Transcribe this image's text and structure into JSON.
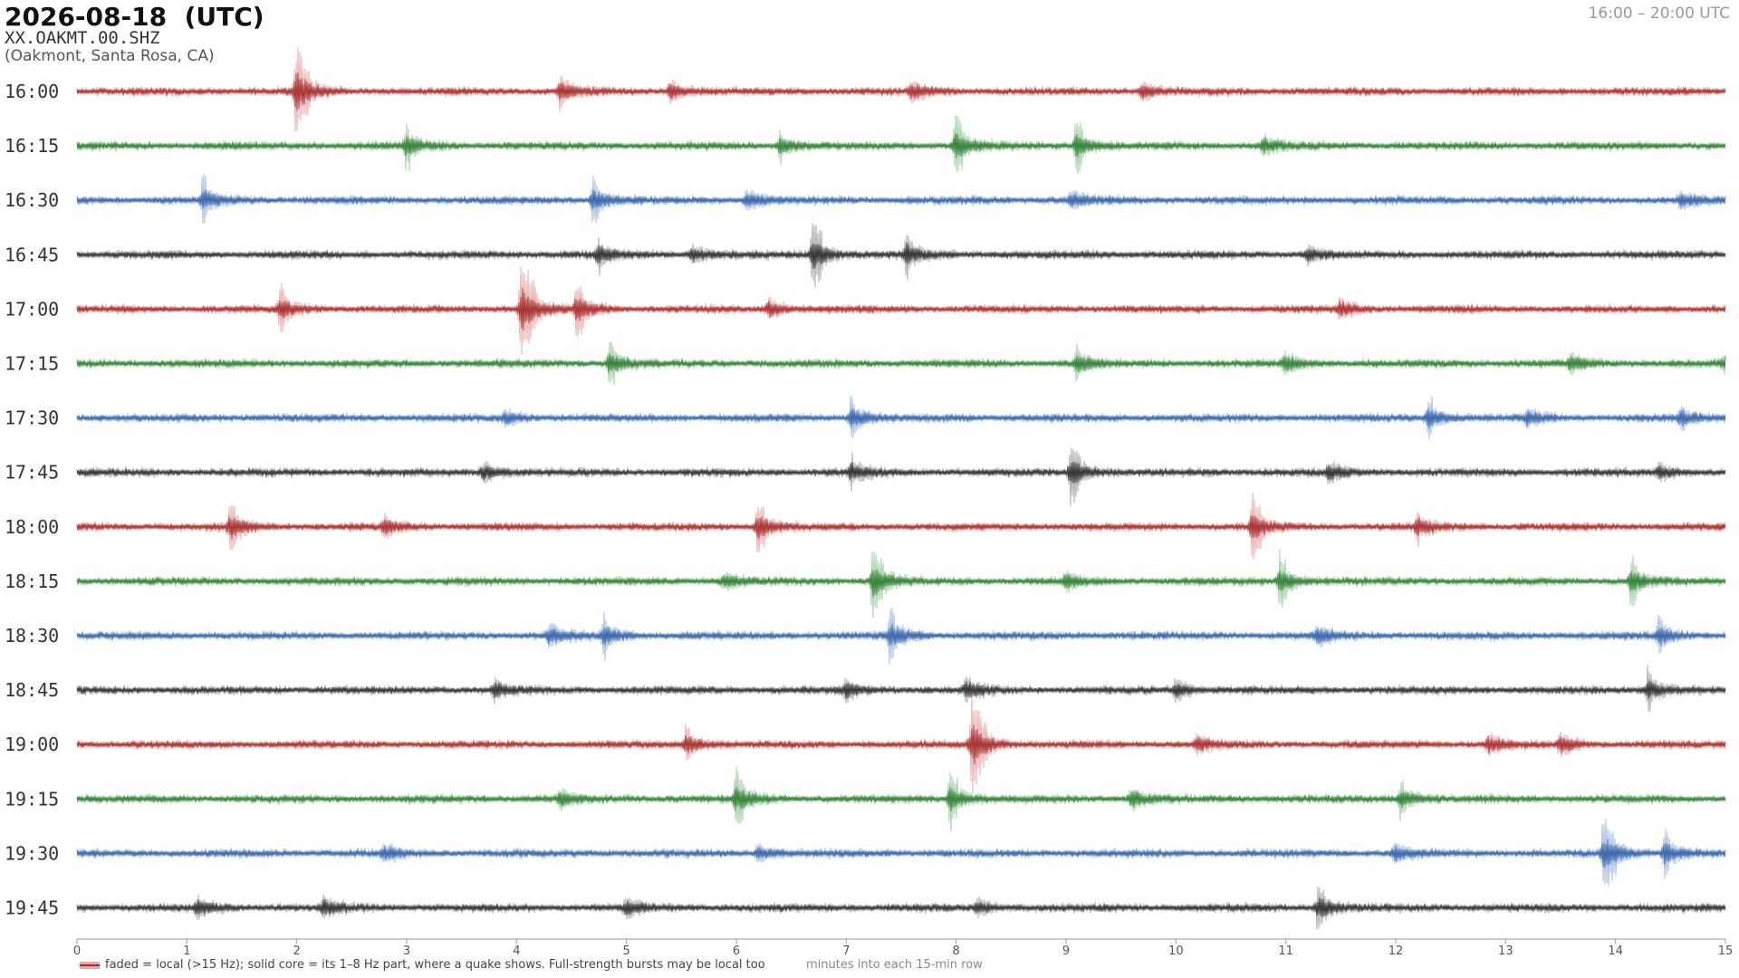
{
  "header": {
    "title": "2026-08-18  (UTC)",
    "station": "XX.OAKMT.00.SHZ",
    "location": "(Oakmont, Santa Rosa, CA)",
    "time_range": "16:00 – 20:00 UTC"
  },
  "legend": {
    "text": "faded = local (>15 Hz); solid core = its 1–8 Hz part, where a quake shows. Full-strength bursts may be local too"
  },
  "chart_data": {
    "type": "line",
    "title": "2026-08-18  (UTC)",
    "xlabel": "minutes into each 15-min row",
    "ylabel": "",
    "xlim": [
      0,
      15
    ],
    "xticks": [
      "0",
      "1",
      "2",
      "3",
      "4",
      "5",
      "6",
      "7",
      "8",
      "9",
      "10",
      "11",
      "12",
      "13",
      "14",
      "15"
    ],
    "grid": false,
    "palette": [
      "#a52a2a",
      "#2e7d32",
      "#3461a8",
      "#2b2b2b"
    ],
    "rows": [
      {
        "label": "16:00",
        "events": [
          [
            2.0,
            3.5
          ],
          [
            4.4,
            1.6
          ],
          [
            5.4,
            1.3
          ],
          [
            7.6,
            1.2
          ],
          [
            9.7,
            1.1
          ]
        ]
      },
      {
        "label": "16:15",
        "events": [
          [
            3.0,
            1.6
          ],
          [
            6.4,
            1.4
          ],
          [
            8.0,
            2.3
          ],
          [
            9.1,
            2.0
          ],
          [
            10.8,
            1.2
          ]
        ]
      },
      {
        "label": "16:30",
        "events": [
          [
            1.15,
            1.7
          ],
          [
            4.7,
            1.9
          ],
          [
            6.1,
            1.3
          ],
          [
            9.05,
            1.1
          ],
          [
            14.6,
            1.0
          ]
        ]
      },
      {
        "label": "16:45",
        "events": [
          [
            4.75,
            1.4
          ],
          [
            6.7,
            2.7
          ],
          [
            7.55,
            1.7
          ],
          [
            5.6,
            1.1
          ],
          [
            11.2,
            1.0
          ]
        ]
      },
      {
        "label": "17:00",
        "events": [
          [
            4.05,
            4.2
          ],
          [
            4.55,
            2.2
          ],
          [
            1.85,
            1.8
          ],
          [
            6.3,
            1.3
          ],
          [
            11.5,
            1.3
          ]
        ]
      },
      {
        "label": "17:15",
        "events": [
          [
            4.85,
            1.8
          ],
          [
            9.1,
            1.5
          ],
          [
            11.0,
            1.3
          ],
          [
            13.6,
            1.2
          ],
          [
            15.0,
            1.0
          ]
        ]
      },
      {
        "label": "17:30",
        "events": [
          [
            7.05,
            1.7
          ],
          [
            12.3,
            1.7
          ],
          [
            14.6,
            1.2
          ],
          [
            13.2,
            1.0
          ],
          [
            3.9,
            1.0
          ]
        ]
      },
      {
        "label": "17:45",
        "events": [
          [
            9.05,
            2.6
          ],
          [
            7.05,
            1.4
          ],
          [
            3.7,
            1.2
          ],
          [
            11.4,
            1.1
          ],
          [
            14.4,
            1.0
          ]
        ]
      },
      {
        "label": "18:00",
        "events": [
          [
            1.4,
            1.9
          ],
          [
            6.2,
            2.1
          ],
          [
            10.7,
            2.4
          ],
          [
            12.2,
            1.4
          ],
          [
            2.8,
            1.2
          ]
        ]
      },
      {
        "label": "18:15",
        "events": [
          [
            7.25,
            2.8
          ],
          [
            10.95,
            2.1
          ],
          [
            14.15,
            1.9
          ],
          [
            5.9,
            1.1
          ],
          [
            9.0,
            1.0
          ]
        ]
      },
      {
        "label": "18:30",
        "events": [
          [
            7.4,
            1.9
          ],
          [
            4.8,
            1.6
          ],
          [
            4.3,
            1.3
          ],
          [
            14.4,
            1.6
          ],
          [
            11.3,
            1.2
          ]
        ]
      },
      {
        "label": "18:45",
        "events": [
          [
            3.8,
            1.2
          ],
          [
            10.0,
            1.3
          ],
          [
            14.3,
            1.7
          ],
          [
            8.1,
            1.3
          ],
          [
            7.0,
            1.2
          ]
        ]
      },
      {
        "label": "19:00",
        "events": [
          [
            8.15,
            4.0
          ],
          [
            5.55,
            1.6
          ],
          [
            12.85,
            1.3
          ],
          [
            13.5,
            1.3
          ],
          [
            10.2,
            1.1
          ]
        ]
      },
      {
        "label": "19:15",
        "events": [
          [
            12.05,
            1.6
          ],
          [
            6.0,
            2.2
          ],
          [
            7.95,
            2.3
          ],
          [
            9.6,
            1.3
          ],
          [
            4.4,
            1.1
          ]
        ]
      },
      {
        "label": "19:30",
        "events": [
          [
            13.9,
            3.1
          ],
          [
            14.45,
            1.9
          ],
          [
            12.0,
            1.2
          ],
          [
            6.2,
            1.0
          ],
          [
            2.8,
            1.0
          ]
        ]
      },
      {
        "label": "19:45",
        "events": [
          [
            11.3,
            1.9
          ],
          [
            2.25,
            1.3
          ],
          [
            1.1,
            1.2
          ],
          [
            8.2,
            1.0
          ],
          [
            5.0,
            1.0
          ]
        ]
      }
    ]
  }
}
